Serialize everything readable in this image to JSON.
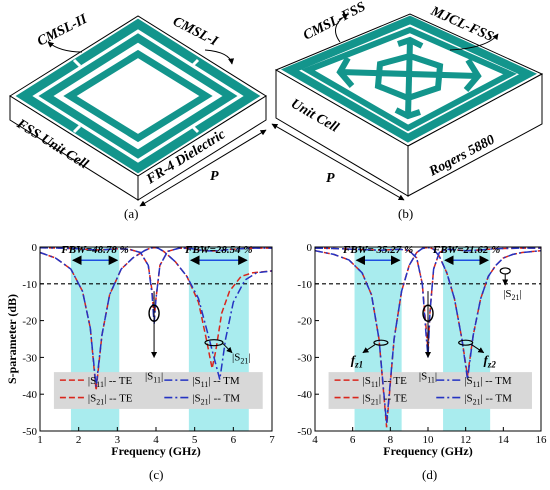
{
  "figure": {
    "panel_a": {
      "caption": "(a)",
      "labels": {
        "cmsl2": "CMSL-II",
        "cmsl1": "CMSL-I",
        "unit": "FSS Unit Cell",
        "diel": "FR-4 Dielectric",
        "p": "P"
      }
    },
    "panel_b": {
      "caption": "(b)",
      "labels": {
        "cmsl": "CMSL-FSS",
        "mjcl": "MJCL-FSS",
        "unit": "Unit Cell",
        "diel": "Rogers 5880",
        "p": "P"
      }
    },
    "panel_c": {
      "caption": "(c)"
    },
    "panel_d": {
      "caption": "(d)"
    }
  },
  "chart_data": [
    {
      "type": "line",
      "xlabel": "Frequency (GHz)",
      "ylabel": "S-parameter (dB)",
      "xlim": [
        1,
        7
      ],
      "ylim": [
        -50,
        0
      ],
      "xticks": [
        "1",
        "2",
        "3",
        "4",
        "5",
        "6",
        "7"
      ],
      "yticks": [
        "0",
        "-10",
        "-20",
        "-30",
        "-40",
        "-50"
      ],
      "reference_line_db": -10,
      "shaded_bands_ghz": [
        [
          1.8,
          3.05
        ],
        [
          4.85,
          6.4
        ]
      ],
      "annotations": {
        "fbw1": "FBW=48.78 %",
        "fbw2": "FBW=28.54 %",
        "s11": "|S",
        "s11sub": "11",
        "s21": "|S",
        "s21sub": "21"
      },
      "legend": [
        {
          "name": "|S11| -- TE",
          "base": "|S",
          "sub": "11",
          "tail": "| -- TE",
          "color": "#d9261c",
          "dash": "dash"
        },
        {
          "name": "|S11| -- TM",
          "base": "|S",
          "sub": "11",
          "tail": "| -- TM",
          "color": "#2433c2",
          "dash": "dashdot"
        },
        {
          "name": "|S21| -- TE",
          "base": "|S",
          "sub": "21",
          "tail": "| -- TE",
          "color": "#d9261c",
          "dash": "dash"
        },
        {
          "name": "|S21| -- TM",
          "base": "|S",
          "sub": "21",
          "tail": "| -- TM",
          "color": "#2433c2",
          "dash": "dashdot"
        }
      ],
      "series": [
        {
          "name": "|S11| -- TE",
          "color": "#d9261c",
          "dash": "dash",
          "x": [
            1.0,
            1.5,
            2.0,
            2.3,
            2.5,
            2.7,
            3.0,
            3.3,
            3.6,
            3.8,
            3.9,
            3.95,
            4.0,
            4.1,
            4.3,
            4.6,
            4.9,
            5.1,
            5.3,
            5.45,
            5.6,
            5.8,
            6.0,
            6.3,
            6.6,
            7.0
          ],
          "y": [
            -0.2,
            -0.3,
            -0.5,
            -0.7,
            -0.8,
            -0.7,
            -0.5,
            -0.6,
            -1.5,
            -5,
            -12,
            -20,
            -14,
            -5,
            -1.2,
            -0.3,
            -0.4,
            -0.8,
            -1.0,
            -1.1,
            -1.0,
            -0.8,
            -0.6,
            -0.4,
            -0.3,
            -0.3
          ]
        },
        {
          "name": "|S21| -- TE",
          "color": "#d9261c",
          "dash": "dash",
          "x": [
            1.0,
            1.4,
            1.8,
            2.1,
            2.3,
            2.45,
            2.6,
            2.8,
            3.1,
            3.4,
            3.7,
            3.85,
            3.95,
            4.0,
            4.05,
            4.2,
            4.5,
            4.8,
            5.1,
            5.3,
            5.45,
            5.55,
            5.7,
            5.9,
            6.2,
            6.5,
            7.0
          ],
          "y": [
            -1.5,
            -3,
            -6,
            -12,
            -22,
            -39,
            -24,
            -13,
            -6,
            -3,
            -1,
            -0.3,
            -0.2,
            -0.2,
            -0.3,
            -1.2,
            -4,
            -8,
            -15,
            -25,
            -33,
            -28,
            -18,
            -12,
            -8,
            -7,
            -6.5
          ]
        },
        {
          "name": "|S11| -- TM",
          "color": "#2433c2",
          "dash": "dashdot",
          "x": [
            1.0,
            1.5,
            2.0,
            2.3,
            2.5,
            2.7,
            3.0,
            3.3,
            3.6,
            3.8,
            3.9,
            3.95,
            4.0,
            4.1,
            4.3,
            4.6,
            4.9,
            5.1,
            5.3,
            5.45,
            5.6,
            5.8,
            6.0,
            6.3,
            6.6,
            7.0
          ],
          "y": [
            -0.2,
            -0.3,
            -0.5,
            -0.7,
            -0.8,
            -0.7,
            -0.5,
            -0.6,
            -1.5,
            -5,
            -13,
            -21,
            -14,
            -5,
            -1.2,
            -0.3,
            -0.4,
            -0.8,
            -1.0,
            -1.1,
            -1.0,
            -0.8,
            -0.6,
            -0.4,
            -0.3,
            -0.3
          ]
        },
        {
          "name": "|S21| -- TM",
          "color": "#2433c2",
          "dash": "dashdot",
          "x": [
            1.0,
            1.4,
            1.8,
            2.1,
            2.3,
            2.45,
            2.6,
            2.8,
            3.1,
            3.4,
            3.7,
            3.85,
            3.95,
            4.0,
            4.05,
            4.2,
            4.5,
            4.8,
            5.1,
            5.3,
            5.5,
            5.65,
            5.8,
            6.0,
            6.3,
            6.6,
            7.0
          ],
          "y": [
            -1.5,
            -3,
            -6,
            -12,
            -22,
            -38,
            -24,
            -13,
            -6,
            -3,
            -1,
            -0.3,
            -0.2,
            -0.2,
            -0.3,
            -1.2,
            -4,
            -8,
            -14,
            -22,
            -30,
            -36,
            -25,
            -15,
            -9,
            -7,
            -6.5
          ]
        }
      ]
    },
    {
      "type": "line",
      "xlabel": "Frequency (GHz)",
      "ylabel": "",
      "xlim": [
        4,
        16
      ],
      "ylim": [
        -50,
        0
      ],
      "xticks": [
        "4",
        "6",
        "8",
        "10",
        "12",
        "14",
        "16"
      ],
      "yticks": [
        "0",
        "-10",
        "-20",
        "-30",
        "-40",
        "-50"
      ],
      "reference_line_db": -10,
      "shaded_bands_ghz": [
        [
          6.1,
          8.6
        ],
        [
          10.8,
          13.3
        ]
      ],
      "annotations": {
        "fbw1": "FBW= 35.27 %",
        "fbw2": "FBW=21.62 %",
        "s11": "|S",
        "s11sub": "11",
        "s21": "|S",
        "s21sub": "21",
        "fz1": "f",
        "fz1sub": "z1",
        "fz2": "f",
        "fz2sub": "z2"
      },
      "legend": [
        {
          "name": "|S11| -- TE",
          "base": "|S",
          "sub": "11",
          "tail": "| -- TE",
          "color": "#d9261c",
          "dash": "dash"
        },
        {
          "name": "|S11| -- TM",
          "base": "|S",
          "sub": "11",
          "tail": "| -- TM",
          "color": "#2433c2",
          "dash": "dashdot"
        },
        {
          "name": "|S21| -- TE",
          "base": "|S",
          "sub": "21",
          "tail": "| -- TE",
          "color": "#d9261c",
          "dash": "dash"
        },
        {
          "name": "|S21| -- TM",
          "base": "|S",
          "sub": "21",
          "tail": "| -- TM",
          "color": "#2433c2",
          "dash": "dashdot"
        }
      ],
      "series": [
        {
          "name": "|S11| -- TE",
          "color": "#d9261c",
          "dash": "dash",
          "x": [
            4,
            5,
            6,
            7,
            7.5,
            7.8,
            8.1,
            8.5,
            9,
            9.4,
            9.7,
            9.9,
            10.0,
            10.1,
            10.3,
            10.6,
            11,
            11.5,
            12,
            12.5,
            13,
            13.5,
            14,
            15,
            16
          ],
          "y": [
            -0.3,
            -0.4,
            -0.6,
            -0.8,
            -0.9,
            -0.8,
            -0.7,
            -0.6,
            -1,
            -3,
            -10,
            -22,
            -28,
            -18,
            -6,
            -1.5,
            -0.6,
            -0.8,
            -1.0,
            -0.9,
            -0.7,
            -0.5,
            -0.4,
            -0.3,
            -0.3
          ]
        },
        {
          "name": "|S21| -- TE",
          "color": "#d9261c",
          "dash": "dash",
          "x": [
            4,
            5,
            5.8,
            6.5,
            7,
            7.4,
            7.8,
            8.2,
            8.6,
            9,
            9.4,
            9.7,
            9.9,
            10.1,
            10.3,
            10.6,
            11,
            11.4,
            11.8,
            12.1,
            12.4,
            12.8,
            13.2,
            13.6,
            14,
            14.5,
            15,
            16
          ],
          "y": [
            -1,
            -2,
            -3.5,
            -7,
            -13,
            -25,
            -49,
            -25,
            -12,
            -5,
            -1.5,
            -0.4,
            -0.2,
            -0.2,
            -0.6,
            -2.5,
            -7,
            -14,
            -25,
            -35,
            -24,
            -14,
            -8,
            -5,
            -3,
            -2,
            -1.5,
            -1
          ]
        },
        {
          "name": "|S11| -- TM",
          "color": "#2433c2",
          "dash": "dashdot",
          "x": [
            4,
            5,
            6,
            7,
            7.5,
            7.8,
            8.1,
            8.5,
            9,
            9.4,
            9.7,
            9.9,
            10.0,
            10.1,
            10.3,
            10.6,
            11,
            11.5,
            12,
            12.5,
            13,
            13.5,
            14,
            15,
            16
          ],
          "y": [
            -0.3,
            -0.4,
            -0.6,
            -0.8,
            -0.9,
            -0.8,
            -0.7,
            -0.6,
            -1,
            -3,
            -10,
            -24,
            -30,
            -18,
            -6,
            -1.5,
            -0.6,
            -0.8,
            -1.0,
            -0.9,
            -0.7,
            -0.5,
            -0.4,
            -0.3,
            -0.3
          ]
        },
        {
          "name": "|S21| -- TM",
          "color": "#2433c2",
          "dash": "dashdot",
          "x": [
            4,
            5,
            5.8,
            6.5,
            7,
            7.4,
            7.8,
            8.2,
            8.6,
            9,
            9.4,
            9.7,
            9.9,
            10.1,
            10.3,
            10.6,
            11,
            11.4,
            11.8,
            12.1,
            12.4,
            12.8,
            13.2,
            13.6,
            14,
            14.5,
            15,
            16
          ],
          "y": [
            -1,
            -2,
            -3.5,
            -7,
            -13,
            -25,
            -48,
            -25,
            -12,
            -5,
            -1.5,
            -0.4,
            -0.2,
            -0.2,
            -0.6,
            -2.5,
            -7,
            -14,
            -25,
            -36,
            -24,
            -14,
            -8,
            -5,
            -3,
            -2,
            -1.5,
            -1
          ]
        }
      ]
    }
  ]
}
